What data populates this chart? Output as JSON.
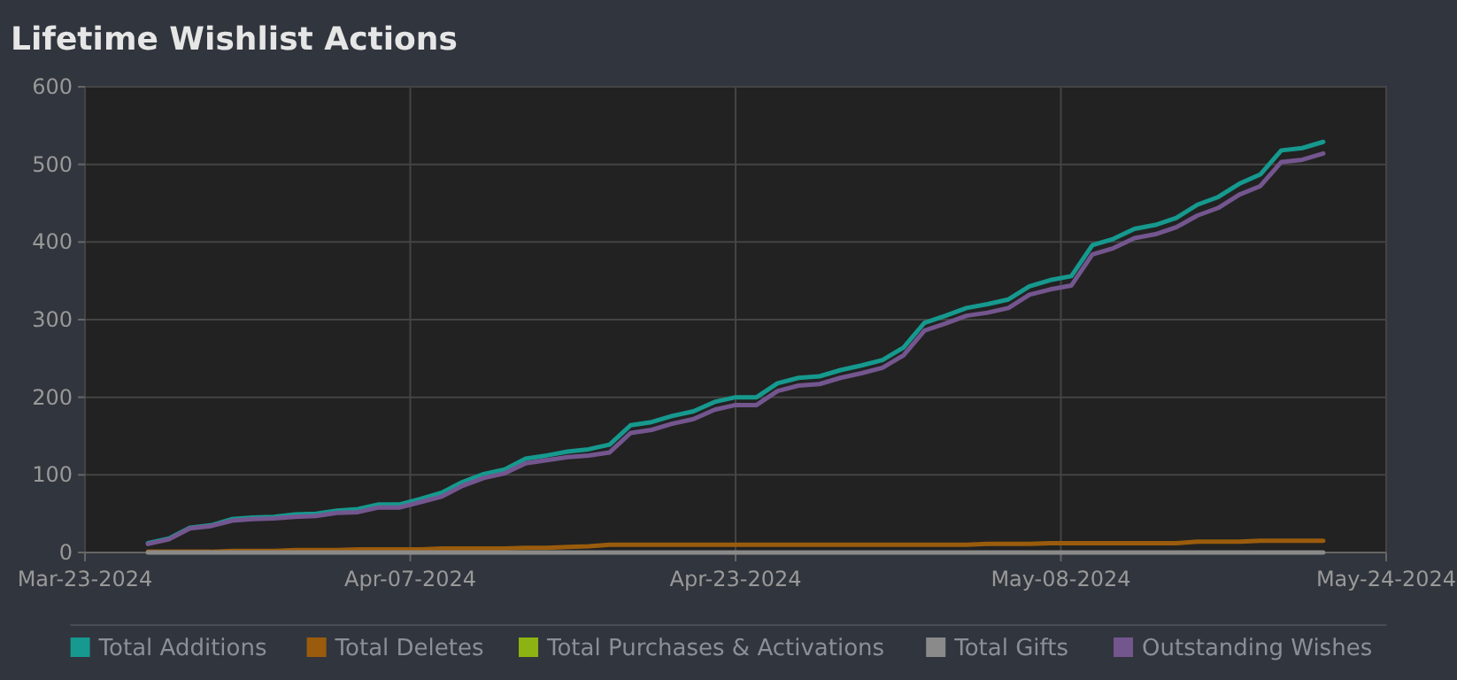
{
  "chart_data": {
    "type": "line",
    "title": "Lifetime Wishlist Actions",
    "x": [
      "2024-03-26",
      "2024-03-27",
      "2024-03-28",
      "2024-03-29",
      "2024-03-30",
      "2024-03-31",
      "2024-04-01",
      "2024-04-02",
      "2024-04-03",
      "2024-04-04",
      "2024-04-05",
      "2024-04-06",
      "2024-04-07",
      "2024-04-08",
      "2024-04-09",
      "2024-04-10",
      "2024-04-11",
      "2024-04-12",
      "2024-04-13",
      "2024-04-14",
      "2024-04-15",
      "2024-04-16",
      "2024-04-17",
      "2024-04-18",
      "2024-04-19",
      "2024-04-20",
      "2024-04-21",
      "2024-04-22",
      "2024-04-23",
      "2024-04-24",
      "2024-04-25",
      "2024-04-26",
      "2024-04-27",
      "2024-04-28",
      "2024-04-29",
      "2024-04-30",
      "2024-05-01",
      "2024-05-02",
      "2024-05-03",
      "2024-05-04",
      "2024-05-05",
      "2024-05-06",
      "2024-05-07",
      "2024-05-08",
      "2024-05-09",
      "2024-05-10",
      "2024-05-11",
      "2024-05-12",
      "2024-05-13",
      "2024-05-14",
      "2024-05-15",
      "2024-05-16",
      "2024-05-17",
      "2024-05-18",
      "2024-05-19",
      "2024-05-20",
      "2024-05-21"
    ],
    "series": [
      {
        "name": "Total Additions",
        "color": "#16998e",
        "values": [
          12,
          18,
          32,
          35,
          43,
          45,
          46,
          49,
          50,
          54,
          56,
          62,
          62,
          69,
          77,
          91,
          101,
          107,
          121,
          125,
          130,
          133,
          139,
          164,
          168,
          176,
          182,
          194,
          200,
          200,
          218,
          225,
          227,
          235,
          241,
          248,
          264,
          296,
          305,
          315,
          320,
          326,
          343,
          351,
          356,
          396,
          404,
          417,
          422,
          431,
          448,
          458,
          475,
          487,
          518,
          521,
          529
        ]
      },
      {
        "name": "Total Deletes",
        "color": "#9a5c0c",
        "values": [
          1,
          1,
          1,
          1,
          2,
          2,
          2,
          3,
          3,
          3,
          4,
          4,
          4,
          4,
          5,
          5,
          5,
          5,
          6,
          6,
          7,
          8,
          10,
          10,
          10,
          10,
          10,
          10,
          10,
          10,
          10,
          10,
          10,
          10,
          10,
          10,
          10,
          10,
          10,
          10,
          11,
          11,
          11,
          12,
          12,
          12,
          12,
          12,
          12,
          12,
          14,
          14,
          14,
          15,
          15,
          15,
          15
        ]
      },
      {
        "name": "Total Purchases & Activations",
        "color": "#8db312",
        "values": [
          null,
          null,
          null,
          null,
          null,
          null,
          null,
          null,
          null,
          null,
          null,
          null,
          null,
          null,
          null,
          null,
          null,
          null,
          null,
          null,
          null,
          null,
          null,
          null,
          null,
          null,
          null,
          null,
          null,
          null,
          null,
          null,
          null,
          null,
          null,
          null,
          null,
          null,
          null,
          null,
          null,
          null,
          null,
          null,
          null,
          null,
          null,
          null,
          null,
          null,
          null,
          null,
          null,
          null,
          null,
          null,
          null
        ]
      },
      {
        "name": "Total Gifts",
        "color": "#8a8a8a",
        "values": [
          0,
          0,
          0,
          0,
          0,
          0,
          0,
          0,
          0,
          0,
          0,
          0,
          0,
          0,
          0,
          0,
          0,
          0,
          0,
          0,
          0,
          0,
          0,
          0,
          0,
          0,
          0,
          0,
          0,
          0,
          0,
          0,
          0,
          0,
          0,
          0,
          0,
          0,
          0,
          0,
          0,
          0,
          0,
          0,
          0,
          0,
          0,
          0,
          0,
          0,
          0,
          0,
          0,
          0,
          0,
          0,
          0
        ]
      },
      {
        "name": "Outstanding Wishes",
        "color": "#74568f",
        "values": [
          11,
          17,
          31,
          34,
          41,
          43,
          44,
          46,
          47,
          51,
          52,
          58,
          58,
          65,
          72,
          86,
          96,
          102,
          115,
          119,
          123,
          125,
          129,
          154,
          158,
          166,
          172,
          184,
          190,
          190,
          208,
          215,
          217,
          225,
          231,
          238,
          254,
          286,
          295,
          305,
          309,
          315,
          332,
          339,
          344,
          384,
          392,
          405,
          410,
          419,
          434,
          444,
          461,
          472,
          503,
          506,
          514
        ]
      }
    ],
    "xlim": [
      "2024-03-23",
      "2024-05-24"
    ],
    "xticks": [
      {
        "value": "2024-03-23",
        "label": "Mar-23-2024"
      },
      {
        "value": "2024-04-07T12:00",
        "label": "Apr-07-2024"
      },
      {
        "value": "2024-04-23",
        "label": "Apr-23-2024"
      },
      {
        "value": "2024-05-08T12:00",
        "label": "May-08-2024"
      },
      {
        "value": "2024-05-24",
        "label": "May-24-2024"
      }
    ],
    "ylim": [
      0,
      600
    ],
    "yticks": [
      0,
      100,
      200,
      300,
      400,
      500,
      600
    ],
    "grid": true,
    "legend": "bottom",
    "marker": "none",
    "line_style": "solid"
  }
}
